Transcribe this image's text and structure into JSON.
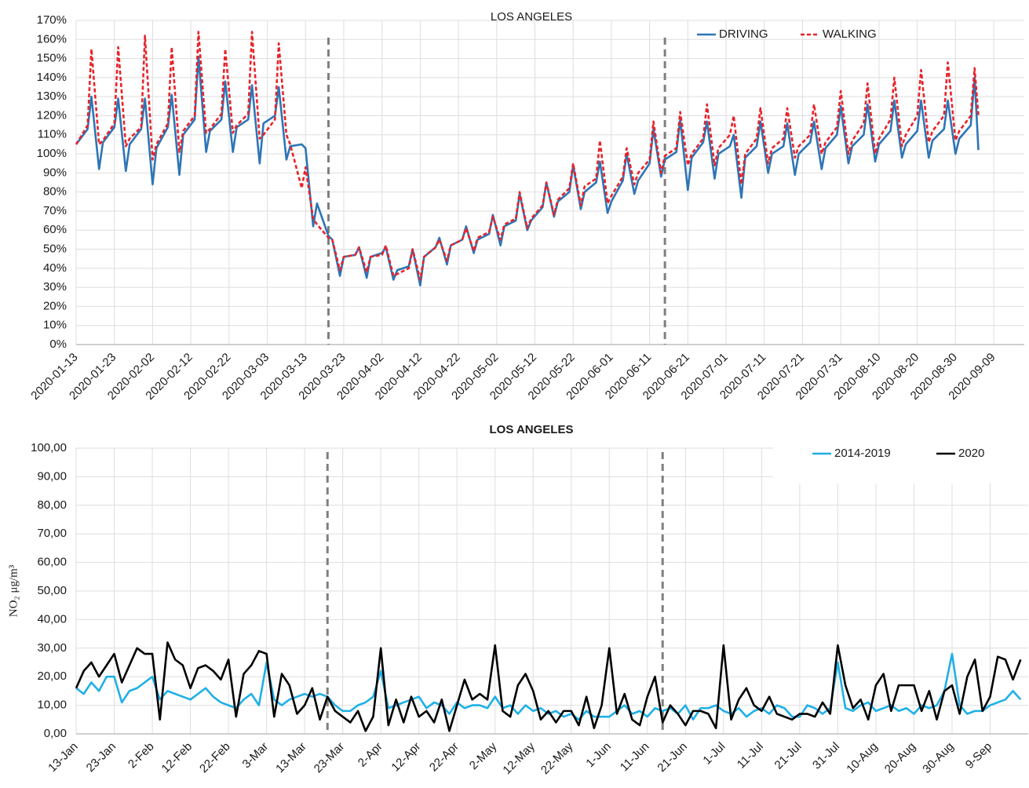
{
  "chart_data": [
    {
      "type": "line",
      "title": "LOS ANGELES",
      "x": [
        "2020-01-13",
        "2020-01-16",
        "2020-01-17",
        "2020-01-19",
        "2020-01-20",
        "2020-01-23",
        "2020-01-24",
        "2020-01-26",
        "2020-01-27",
        "2020-01-30",
        "2020-01-31",
        "2020-02-02",
        "2020-02-03",
        "2020-02-06",
        "2020-02-07",
        "2020-02-09",
        "2020-02-10",
        "2020-02-13",
        "2020-02-14",
        "2020-02-16",
        "2020-02-17",
        "2020-02-20",
        "2020-02-21",
        "2020-02-23",
        "2020-02-24",
        "2020-02-27",
        "2020-02-28",
        "2020-03-01",
        "2020-03-02",
        "2020-03-05",
        "2020-03-06",
        "2020-03-08",
        "2020-03-09",
        "2020-03-12",
        "2020-03-13",
        "2020-03-15",
        "2020-03-16",
        "2020-03-19",
        "2020-03-20",
        "2020-03-22",
        "2020-03-23",
        "2020-03-26",
        "2020-03-27",
        "2020-03-29",
        "2020-03-30",
        "2020-04-02",
        "2020-04-03",
        "2020-04-05",
        "2020-04-06",
        "2020-04-09",
        "2020-04-10",
        "2020-04-12",
        "2020-04-13",
        "2020-04-16",
        "2020-04-17",
        "2020-04-19",
        "2020-04-20",
        "2020-04-23",
        "2020-04-24",
        "2020-04-26",
        "2020-04-27",
        "2020-04-30",
        "2020-05-01",
        "2020-05-03",
        "2020-05-04",
        "2020-05-07",
        "2020-05-08",
        "2020-05-10",
        "2020-05-11",
        "2020-05-14",
        "2020-05-15",
        "2020-05-17",
        "2020-05-18",
        "2020-05-21",
        "2020-05-22",
        "2020-05-24",
        "2020-05-25",
        "2020-05-28",
        "2020-05-29",
        "2020-05-31",
        "2020-06-01",
        "2020-06-04",
        "2020-06-05",
        "2020-06-07",
        "2020-06-08",
        "2020-06-11",
        "2020-06-12",
        "2020-06-14",
        "2020-06-15",
        "2020-06-18",
        "2020-06-19",
        "2020-06-21",
        "2020-06-22",
        "2020-06-25",
        "2020-06-26",
        "2020-06-28",
        "2020-06-29",
        "2020-07-02",
        "2020-07-03",
        "2020-07-05",
        "2020-07-06",
        "2020-07-09",
        "2020-07-10",
        "2020-07-12",
        "2020-07-13",
        "2020-07-16",
        "2020-07-17",
        "2020-07-19",
        "2020-07-20",
        "2020-07-23",
        "2020-07-24",
        "2020-07-26",
        "2020-07-27",
        "2020-07-30",
        "2020-07-31",
        "2020-08-02",
        "2020-08-03",
        "2020-08-06",
        "2020-08-07",
        "2020-08-09",
        "2020-08-10",
        "2020-08-13",
        "2020-08-14",
        "2020-08-16",
        "2020-08-17",
        "2020-08-20",
        "2020-08-21",
        "2020-08-23",
        "2020-08-24",
        "2020-08-27",
        "2020-08-28",
        "2020-08-30",
        "2020-08-31",
        "2020-09-03",
        "2020-09-04",
        "2020-09-05"
      ],
      "series": [
        {
          "name": "DRIVING",
          "color": "#2e75b6",
          "line_style": "solid",
          "values": [
            105,
            113,
            130,
            92,
            106,
            114,
            129,
            91,
            105,
            113,
            129,
            84,
            103,
            114,
            131,
            89,
            110,
            118,
            151,
            101,
            112,
            118,
            138,
            101,
            114,
            118,
            136,
            95,
            116,
            120,
            135,
            97,
            104,
            105,
            103,
            62,
            74,
            57,
            55,
            36,
            46,
            47,
            51,
            35,
            46,
            48,
            51,
            34,
            39,
            41,
            50,
            31,
            46,
            51,
            56,
            42,
            52,
            55,
            62,
            48,
            55,
            58,
            68,
            52,
            62,
            65,
            79,
            60,
            65,
            72,
            85,
            67,
            75,
            80,
            94,
            71,
            80,
            85,
            96,
            69,
            75,
            86,
            100,
            79,
            86,
            95,
            113,
            88,
            97,
            101,
            118,
            81,
            98,
            106,
            117,
            87,
            100,
            104,
            110,
            77,
            98,
            104,
            117,
            90,
            100,
            104,
            116,
            89,
            100,
            106,
            117,
            92,
            103,
            110,
            125,
            95,
            104,
            110,
            126,
            96,
            105,
            112,
            128,
            98,
            105,
            112,
            128,
            98,
            107,
            113,
            128,
            100,
            108,
            115,
            140,
            102
          ]
        },
        {
          "name": "WALKING",
          "color": "#e8232a",
          "line_style": "dashed",
          "values": [
            105,
            115,
            155,
            105,
            107,
            116,
            156,
            104,
            108,
            114,
            162,
            97,
            105,
            116,
            156,
            101,
            112,
            120,
            164,
            111,
            113,
            121,
            155,
            111,
            115,
            121,
            164,
            108,
            110,
            118,
            158,
            110,
            105,
            82,
            93,
            66,
            63,
            56,
            55,
            39,
            46,
            47,
            51,
            38,
            46,
            47,
            52,
            36,
            37,
            40,
            50,
            34,
            46,
            51,
            55,
            44,
            52,
            55,
            61,
            49,
            56,
            59,
            67,
            55,
            63,
            66,
            80,
            61,
            66,
            73,
            85,
            68,
            76,
            82,
            95,
            73,
            83,
            87,
            107,
            74,
            78,
            88,
            103,
            84,
            90,
            97,
            117,
            90,
            99,
            103,
            122,
            94,
            100,
            108,
            126,
            94,
            103,
            110,
            120,
            84,
            100,
            108,
            124,
            95,
            103,
            108,
            124,
            98,
            104,
            110,
            126,
            100,
            106,
            114,
            133,
            100,
            107,
            116,
            137,
            100,
            108,
            118,
            140,
            104,
            110,
            120,
            144,
            106,
            112,
            120,
            148,
            107,
            112,
            120,
            145,
            120
          ]
        }
      ],
      "xlim": [
        "2020-01-13",
        "2020-09-17"
      ],
      "xticks": [
        "2020-01-13",
        "2020-01-23",
        "2020-02-02",
        "2020-02-12",
        "2020-02-22",
        "2020-03-03",
        "2020-03-13",
        "2020-03-23",
        "2020-04-02",
        "2020-04-12",
        "2020-04-22",
        "2020-05-02",
        "2020-05-12",
        "2020-05-22",
        "2020-06-01",
        "2020-06-11",
        "2020-06-21",
        "2020-07-01",
        "2020-07-11",
        "2020-07-21",
        "2020-07-31",
        "2020-08-10",
        "2020-08-20",
        "2020-08-30",
        "2020-09-09"
      ],
      "ylim": [
        0,
        170
      ],
      "yticks": [
        {
          "value": 0,
          "label": "0%"
        },
        {
          "value": 10,
          "label": "10%"
        },
        {
          "value": 20,
          "label": "20%"
        },
        {
          "value": 30,
          "label": "30%"
        },
        {
          "value": 40,
          "label": "40%"
        },
        {
          "value": 50,
          "label": "50%"
        },
        {
          "value": 60,
          "label": "60%"
        },
        {
          "value": 70,
          "label": "70%"
        },
        {
          "value": 80,
          "label": "80%"
        },
        {
          "value": 90,
          "label": "90%"
        },
        {
          "value": 100,
          "label": "100%"
        },
        {
          "value": 110,
          "label": "110%"
        },
        {
          "value": 120,
          "label": "120%"
        },
        {
          "value": 130,
          "label": "130%"
        },
        {
          "value": 140,
          "label": "140%"
        },
        {
          "value": 150,
          "label": "150%"
        },
        {
          "value": 160,
          "label": "160%"
        },
        {
          "value": 170,
          "label": "170%"
        }
      ],
      "reference_lines": [
        "2020-03-19",
        "2020-06-15"
      ],
      "grid": true,
      "legend": "upper right"
    },
    {
      "type": "line",
      "title": "LOS ANGELES",
      "ylabel": "NO₂ μg/m³",
      "x": [
        "13-Jan",
        "15-Jan",
        "17-Jan",
        "19-Jan",
        "21-Jan",
        "23-Jan",
        "25-Jan",
        "27-Jan",
        "29-Jan",
        "31-Jan",
        "2-Feb",
        "4-Feb",
        "6-Feb",
        "8-Feb",
        "10-Feb",
        "12-Feb",
        "14-Feb",
        "16-Feb",
        "18-Feb",
        "20-Feb",
        "22-Feb",
        "24-Feb",
        "26-Feb",
        "28-Feb",
        "1-Mar",
        "3-Mar",
        "5-Mar",
        "7-Mar",
        "9-Mar",
        "11-Mar",
        "13-Mar",
        "15-Mar",
        "17-Mar",
        "19-Mar",
        "21-Mar",
        "23-Mar",
        "25-Mar",
        "27-Mar",
        "29-Mar",
        "31-Mar",
        "2-Apr",
        "4-Apr",
        "6-Apr",
        "8-Apr",
        "10-Apr",
        "12-Apr",
        "14-Apr",
        "16-Apr",
        "18-Apr",
        "20-Apr",
        "22-Apr",
        "24-Apr",
        "26-Apr",
        "28-Apr",
        "30-Apr",
        "2-May",
        "4-May",
        "6-May",
        "8-May",
        "10-May",
        "12-May",
        "14-May",
        "16-May",
        "18-May",
        "20-May",
        "22-May",
        "24-May",
        "26-May",
        "28-May",
        "30-May",
        "1-Jun",
        "3-Jun",
        "5-Jun",
        "7-Jun",
        "9-Jun",
        "11-Jun",
        "13-Jun",
        "15-Jun",
        "17-Jun",
        "19-Jun",
        "21-Jun",
        "23-Jun",
        "25-Jun",
        "27-Jun",
        "29-Jun",
        "1-Jul",
        "3-Jul",
        "5-Jul",
        "7-Jul",
        "9-Jul",
        "11-Jul",
        "13-Jul",
        "15-Jul",
        "17-Jul",
        "19-Jul",
        "21-Jul",
        "23-Jul",
        "25-Jul",
        "27-Jul",
        "29-Jul",
        "31-Jul",
        "2-Aug",
        "4-Aug",
        "6-Aug",
        "8-Aug",
        "10-Aug",
        "12-Aug",
        "14-Aug",
        "16-Aug",
        "18-Aug",
        "20-Aug",
        "22-Aug",
        "24-Aug",
        "26-Aug",
        "28-Aug",
        "30-Aug",
        "1-Sep",
        "3-Sep",
        "5-Sep",
        "7-Sep",
        "9-Sep",
        "11-Sep",
        "13-Sep",
        "15-Sep",
        "17-Sep"
      ],
      "series": [
        {
          "name": "2014-2019",
          "color": "#1fb0e6",
          "line_style": "solid",
          "values": [
            16,
            14,
            18,
            15,
            20,
            20,
            11,
            15,
            16,
            18,
            20,
            12,
            15,
            14,
            13,
            12,
            14,
            16,
            13,
            11,
            10,
            9,
            12,
            14,
            10,
            25,
            12,
            10,
            12,
            13,
            14,
            13,
            14,
            13,
            10,
            8,
            8,
            10,
            11,
            13,
            22,
            9,
            10,
            11,
            12,
            13,
            9,
            11,
            10,
            7,
            11,
            9,
            10,
            10,
            9,
            13,
            9,
            10,
            7,
            10,
            8,
            9,
            7,
            8,
            6,
            7,
            5,
            8,
            6,
            6,
            6,
            8,
            10,
            7,
            8,
            6,
            9,
            8,
            9,
            7,
            10,
            5,
            9,
            9,
            10,
            8,
            7,
            9,
            6,
            8,
            9,
            7,
            10,
            9,
            6,
            6,
            10,
            9,
            7,
            9,
            25,
            9,
            8,
            10,
            11,
            8,
            9,
            10,
            8,
            9,
            7,
            10,
            9,
            10,
            15,
            28,
            10,
            7,
            8,
            8,
            10,
            11,
            12,
            15,
            12
          ]
        },
        {
          "name": "2020",
          "color": "#000000",
          "line_style": "solid",
          "values": [
            16,
            22,
            25,
            20,
            24,
            28,
            18,
            24,
            30,
            28,
            28,
            5,
            32,
            26,
            24,
            16,
            23,
            24,
            22,
            19,
            26,
            6,
            21,
            24,
            29,
            28,
            6,
            21,
            17,
            7,
            10,
            16,
            5,
            13,
            8,
            6,
            4,
            8,
            1,
            6,
            30,
            3,
            12,
            4,
            13,
            6,
            8,
            4,
            12,
            1,
            10,
            19,
            12,
            14,
            12,
            31,
            8,
            6,
            17,
            21,
            15,
            5,
            8,
            4,
            8,
            8,
            3,
            13,
            2,
            10,
            30,
            7,
            14,
            5,
            3,
            13,
            20,
            4,
            10,
            7,
            3,
            8,
            8,
            7,
            2,
            31,
            5,
            12,
            16,
            10,
            8,
            13,
            7,
            6,
            5,
            7,
            7,
            6,
            11,
            7,
            31,
            17,
            9,
            12,
            5,
            17,
            21,
            8,
            17,
            17,
            17,
            8,
            15,
            5,
            15,
            17,
            7,
            20,
            26,
            8,
            13,
            27,
            26,
            19,
            26
          ]
        }
      ],
      "xlim": [
        "13-Jan",
        "19-Sep"
      ],
      "xticks": [
        "13-Jan",
        "23-Jan",
        "2-Feb",
        "12-Feb",
        "22-Feb",
        "3-Mar",
        "13-Mar",
        "23-Mar",
        "2-Apr",
        "12-Apr",
        "22-Apr",
        "2-May",
        "12-May",
        "22-May",
        "1-Jun",
        "11-Jun",
        "21-Jun",
        "1-Jul",
        "11-Jul",
        "21-Jul",
        "31-Jul",
        "10-Aug",
        "20-Aug",
        "30-Aug",
        "9-Sep"
      ],
      "ylim": [
        0,
        100
      ],
      "yticks": [
        {
          "value": 0,
          "label": "0,00"
        },
        {
          "value": 10,
          "label": "10,00"
        },
        {
          "value": 20,
          "label": "20,00"
        },
        {
          "value": 30,
          "label": "30,00"
        },
        {
          "value": 40,
          "label": "40,00"
        },
        {
          "value": 50,
          "label": "50,00"
        },
        {
          "value": 60,
          "label": "60,00"
        },
        {
          "value": 70,
          "label": "70,00"
        },
        {
          "value": 80,
          "label": "80,00"
        },
        {
          "value": 90,
          "label": "90,00"
        },
        {
          "value": 100,
          "label": "100,00"
        }
      ],
      "reference_lines": [
        "19-Mar",
        "15-Jun"
      ],
      "grid": true,
      "legend": "upper right"
    }
  ]
}
